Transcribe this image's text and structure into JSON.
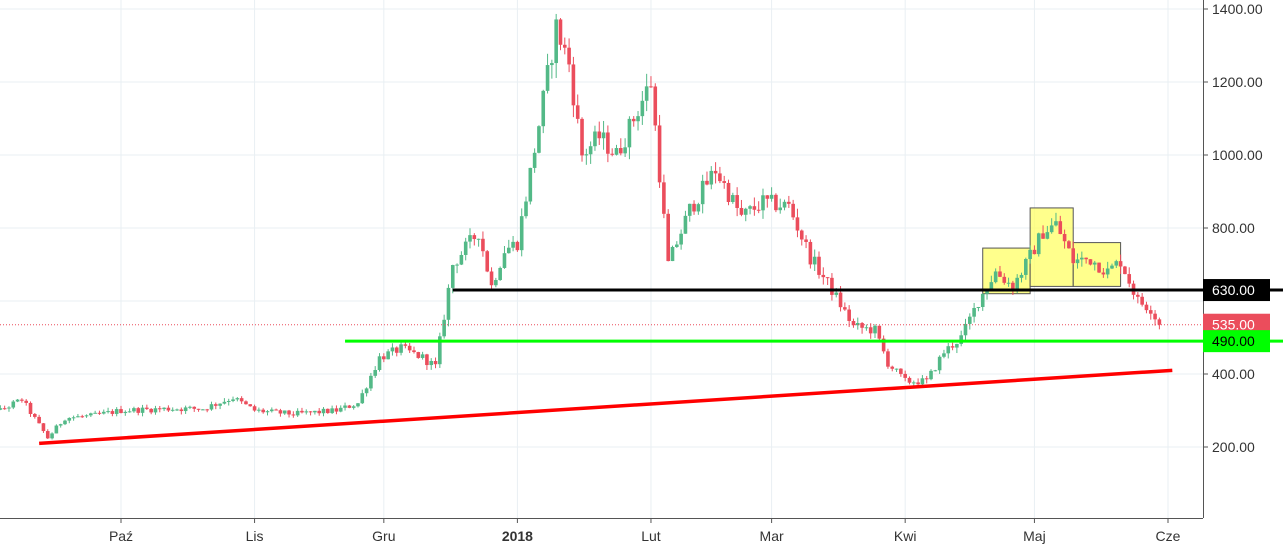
{
  "chart_data": {
    "type": "candlestick",
    "title": "",
    "xlabel": "",
    "ylabel": "",
    "ylim": [
      0,
      1430
    ],
    "grid": true,
    "x_ticks": [
      {
        "label": "Paź",
        "date": "2017-10-01",
        "bold": false
      },
      {
        "label": "Lis",
        "date": "2017-11-01",
        "bold": false
      },
      {
        "label": "Gru",
        "date": "2017-12-01",
        "bold": false
      },
      {
        "label": "2018",
        "date": "2018-01-01",
        "bold": true
      },
      {
        "label": "Lut",
        "date": "2018-02-01",
        "bold": false
      },
      {
        "label": "Mar",
        "date": "2018-03-01",
        "bold": false
      },
      {
        "label": "Kwi",
        "date": "2018-04-01",
        "bold": false
      },
      {
        "label": "Maj",
        "date": "2018-05-01",
        "bold": false
      },
      {
        "label": "Cze",
        "date": "2018-06-01",
        "bold": false
      }
    ],
    "y_ticks": [
      "200.00",
      "400.00",
      "800.00",
      "1000.00",
      "1200.00",
      "1400.00"
    ],
    "y_tick_values": [
      200,
      400,
      800,
      1000,
      1200,
      1400
    ],
    "colors": {
      "up": "#53b987",
      "down": "#eb4d5c",
      "grid": "#e9eff3",
      "axis": "#555555"
    },
    "price_anchors": [
      [
        "2017-08-28",
        340
      ],
      [
        "2017-09-03",
        300
      ],
      [
        "2017-09-08",
        330
      ],
      [
        "2017-09-14",
        225
      ],
      [
        "2017-09-18",
        280
      ],
      [
        "2017-09-24",
        285
      ],
      [
        "2017-10-01",
        300
      ],
      [
        "2017-10-12",
        305
      ],
      [
        "2017-10-20",
        305
      ],
      [
        "2017-10-27",
        335
      ],
      [
        "2017-11-01",
        300
      ],
      [
        "2017-11-10",
        290
      ],
      [
        "2017-11-20",
        300
      ],
      [
        "2017-11-25",
        320
      ],
      [
        "2017-11-30",
        445
      ],
      [
        "2017-12-05",
        470
      ],
      [
        "2017-12-10",
        445
      ],
      [
        "2017-12-13",
        420
      ],
      [
        "2017-12-17",
        700
      ],
      [
        "2017-12-21",
        760
      ],
      [
        "2017-12-23",
        790
      ],
      [
        "2017-12-26",
        640
      ],
      [
        "2017-12-29",
        740
      ],
      [
        "2018-01-01",
        760
      ],
      [
        "2018-01-04",
        950
      ],
      [
        "2018-01-07",
        1150
      ],
      [
        "2018-01-10",
        1350
      ],
      [
        "2018-01-13",
        1250
      ],
      [
        "2018-01-16",
        1000
      ],
      [
        "2018-01-20",
        1050
      ],
      [
        "2018-01-24",
        1000
      ],
      [
        "2018-01-28",
        1100
      ],
      [
        "2018-02-01",
        1200
      ],
      [
        "2018-02-05",
        700
      ],
      [
        "2018-02-10",
        850
      ],
      [
        "2018-02-16",
        960
      ],
      [
        "2018-02-22",
        830
      ],
      [
        "2018-02-27",
        870
      ],
      [
        "2018-03-05",
        860
      ],
      [
        "2018-03-10",
        720
      ],
      [
        "2018-03-15",
        630
      ],
      [
        "2018-03-20",
        530
      ],
      [
        "2018-03-25",
        520
      ],
      [
        "2018-03-28",
        430
      ],
      [
        "2018-04-01",
        380
      ],
      [
        "2018-04-06",
        380
      ],
      [
        "2018-04-10",
        460
      ],
      [
        "2018-04-14",
        500
      ],
      [
        "2018-04-18",
        600
      ],
      [
        "2018-04-22",
        680
      ],
      [
        "2018-04-26",
        640
      ],
      [
        "2018-04-29",
        700
      ],
      [
        "2018-05-03",
        790
      ],
      [
        "2018-05-06",
        810
      ],
      [
        "2018-05-10",
        710
      ],
      [
        "2018-05-14",
        715
      ],
      [
        "2018-05-18",
        680
      ],
      [
        "2018-05-21",
        710
      ],
      [
        "2018-05-25",
        600
      ],
      [
        "2018-05-28",
        580
      ],
      [
        "2018-05-30",
        535
      ]
    ],
    "overlays": {
      "support_line": {
        "color": "#ff0000",
        "from": {
          "date": "2017-09-12",
          "value": 210
        },
        "to": {
          "date": "2018-06-02",
          "value": 410
        }
      },
      "resistance_630": {
        "color": "#000000",
        "value": 630,
        "from_date": "2017-12-17",
        "label": "630.00",
        "label_color": "#000000",
        "label_text_color": "#ffffff"
      },
      "support_490": {
        "color": "#00ff00",
        "value": 490,
        "from_date": "2017-11-22",
        "label": "490.00",
        "label_color": "#00ff00",
        "label_text_color": "#000000"
      },
      "last_price": {
        "value": 535,
        "color": "#eb4d5c",
        "label": "535.00",
        "label_text_color": "#ffffff"
      },
      "pattern_boxes": [
        {
          "name": "left-shoulder",
          "x0": "2018-04-19",
          "x1": "2018-04-30",
          "y0": 620,
          "y1": 745
        },
        {
          "name": "head",
          "x0": "2018-04-30",
          "x1": "2018-05-10",
          "y0": 640,
          "y1": 855
        },
        {
          "name": "right-shoulder",
          "x0": "2018-05-10",
          "x1": "2018-05-21",
          "y0": 640,
          "y1": 760
        }
      ],
      "pattern_color": "#ffff66"
    }
  }
}
